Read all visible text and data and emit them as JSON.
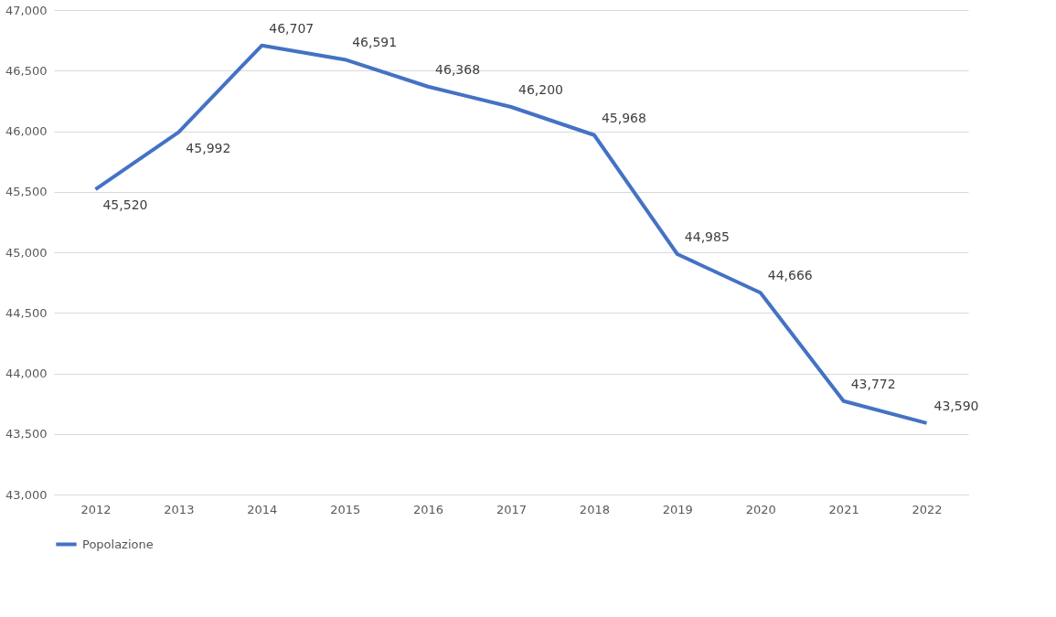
{
  "chart_data": {
    "type": "line",
    "categories": [
      "2012",
      "2013",
      "2014",
      "2015",
      "2016",
      "2017",
      "2018",
      "2019",
      "2020",
      "2021",
      "2022"
    ],
    "series": [
      {
        "name": "Popolazione",
        "color": "#4472c4",
        "values": [
          45520,
          45992,
          46707,
          46591,
          46368,
          46200,
          45968,
          44985,
          44666,
          43772,
          43590
        ],
        "value_labels": [
          "45,520",
          "45,992",
          "46,707",
          "46,591",
          "46,368",
          "46,200",
          "45,968",
          "44,985",
          "44,666",
          "43,772",
          "43,590"
        ]
      }
    ],
    "ylim": [
      43000,
      47000
    ],
    "yticks": [
      {
        "value": 43000,
        "label": "43,000"
      },
      {
        "value": 43500,
        "label": "43,500"
      },
      {
        "value": 44000,
        "label": "44,000"
      },
      {
        "value": 44500,
        "label": "44,500"
      },
      {
        "value": 45000,
        "label": "45,000"
      },
      {
        "value": 45500,
        "label": "45,500"
      },
      {
        "value": 46000,
        "label": "46,000"
      },
      {
        "value": 46500,
        "label": "46,500"
      },
      {
        "value": 47000,
        "label": "47,000"
      }
    ],
    "grid": "y",
    "legend": "bottom",
    "marker": "none",
    "line_style": "solid"
  }
}
